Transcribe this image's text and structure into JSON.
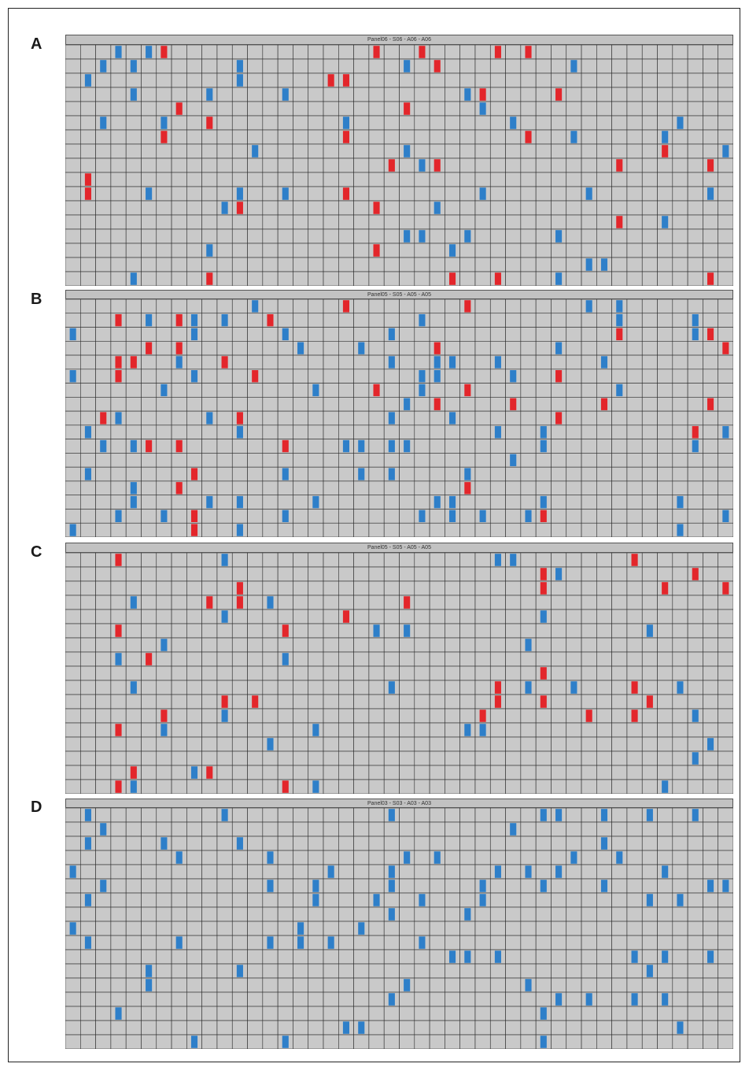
{
  "figure": {
    "cell_colors": {
      "background": "#c9c9c9",
      "grid_line": "#2b2b2b",
      "red": "#e3262b",
      "blue": "#2e7fc9"
    },
    "panels": [
      {
        "letter": "A",
        "header": "Panel06 - S06 - A06 - A06"
      },
      {
        "letter": "B",
        "header": "Panel05 - S05 - A05 - A05"
      },
      {
        "letter": "C",
        "header": "Panel05 - S05 - A05 - A05"
      },
      {
        "letter": "D",
        "header": "Panel03 - S03 - A03 - A03"
      }
    ]
  }
}
